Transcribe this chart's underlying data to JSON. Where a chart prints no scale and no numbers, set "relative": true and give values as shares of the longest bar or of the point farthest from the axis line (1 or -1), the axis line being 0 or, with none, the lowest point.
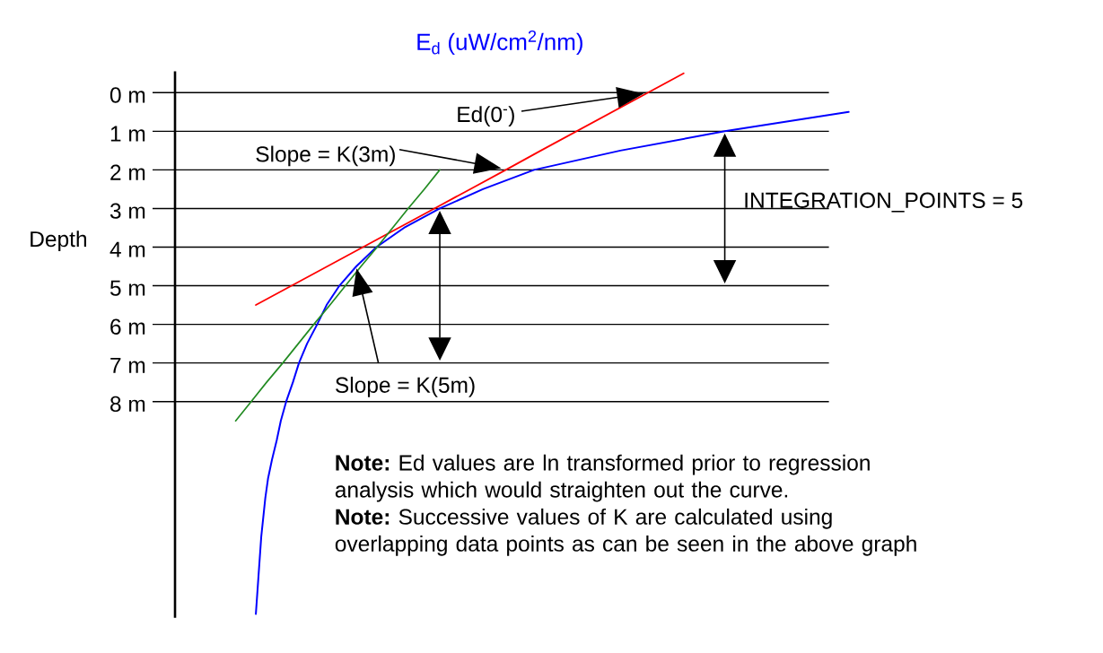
{
  "chart_data": {
    "type": "line",
    "orientation": "horizontal",
    "relative": true,
    "xlabel": "E$_{d}$ (uW/cm$^{2}$/nm)",
    "ylabel": "Depth",
    "categories": [
      null,
      "0 m",
      null,
      "1 m",
      null,
      "2 m",
      null,
      "3 m",
      null,
      "4 m",
      null,
      "5 m",
      null,
      "6 m",
      null,
      "7 m",
      null,
      "8 m",
      null,
      null,
      null,
      null,
      null,
      null,
      null,
      null,
      null,
      null,
      null
    ],
    "grid": "y",
    "tick_labels": "y",
    "series": [
      {
        "color": "#0000ff",
        "values": [
          null,
          null,
          1.0,
          0.816,
          0.661,
          0.533,
          0.457,
          0.393,
          0.34,
          0.299,
          0.269,
          0.244,
          0.225,
          0.211,
          0.196,
          0.184,
          0.175,
          0.165,
          0.157,
          0.151,
          0.144,
          0.138,
          0.134,
          0.131,
          0.128,
          0.126,
          0.124,
          0.122,
          0.12
        ]
      },
      {
        "color": "#ff0000",
        "values": [
          0.755,
          0.702,
          0.649,
          0.596,
          0.543,
          0.491,
          0.438,
          0.385,
          0.332,
          0.279,
          0.226,
          0.173,
          0.12,
          null,
          null,
          null,
          null,
          null,
          null,
          null,
          null,
          null,
          null,
          null,
          null,
          null,
          null,
          null,
          null
        ]
      },
      {
        "color": "#228b22",
        "values": [
          null,
          null,
          null,
          null,
          null,
          0.393,
          0.37,
          0.346,
          0.323,
          0.3,
          0.276,
          0.253,
          0.23,
          0.206,
          0.183,
          0.16,
          0.136,
          0.113,
          0.09,
          null,
          null,
          null,
          null,
          null,
          null,
          null,
          null,
          null,
          null
        ]
      }
    ],
    "annotations": [
      "Ed(0$^{-}$)",
      "Slope = K(3m)",
      "INTEGRATION_POINTS = 5",
      "Slope = K(5m)",
      "**Note:** Ed values are ln transformed prior to regression analysis which would straighten out the curve.",
      "**Note:** Successive values of K are calculated using overlapping data points as can be seen in the above graph"
    ]
  }
}
